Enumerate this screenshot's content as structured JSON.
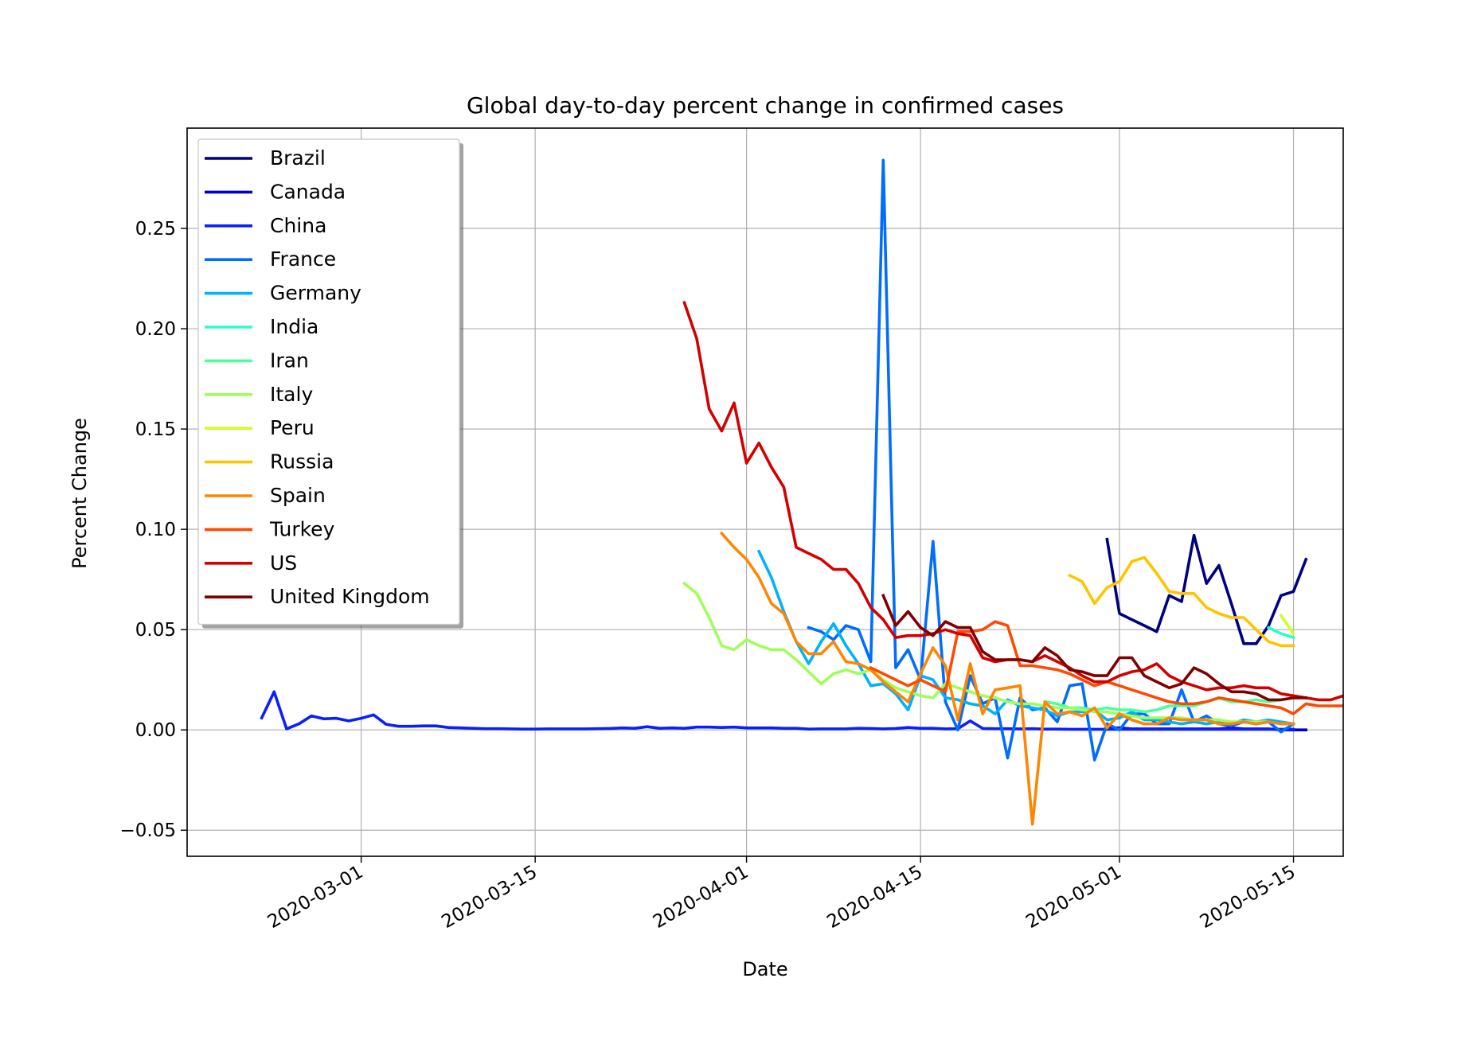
{
  "chart_data": {
    "type": "line",
    "title": "Global day-to-day percent change in confirmed cases",
    "xlabel": "Date",
    "ylabel": "Percent Change",
    "x_is_date": true,
    "xlim": [
      "2020-02-16",
      "2020-05-19"
    ],
    "ylim": [
      -0.063,
      0.3
    ],
    "x_ticks": [
      "2020-03-01",
      "2020-03-15",
      "2020-04-01",
      "2020-04-15",
      "2020-05-01",
      "2020-05-15"
    ],
    "y_ticks": [
      -0.05,
      0.0,
      0.05,
      0.1,
      0.15,
      0.2,
      0.25
    ],
    "y_tick_labels": [
      "−0.05",
      "0.00",
      "0.05",
      "0.10",
      "0.15",
      "0.20",
      "0.25"
    ],
    "grid": true,
    "legend_position": "upper-left",
    "series": [
      {
        "name": "Brazil",
        "color": "#000080",
        "start": "2020-04-30",
        "values": [
          0.095,
          0.058,
          0.055,
          0.052,
          0.049,
          0.067,
          0.064,
          0.097,
          0.073,
          0.082,
          0.063,
          0.043,
          0.043,
          0.052,
          0.067,
          0.069,
          0.085
        ]
      },
      {
        "name": "Canada",
        "color": "#0000cd",
        "start": "2020-04-30",
        "values": [
          0.001,
          0.001,
          0.0005,
          0.0005,
          0.0005,
          0.0005,
          0.0005,
          0.0005,
          0.0005,
          0.0005,
          0.001,
          0.0005,
          0.0005,
          0.0005,
          0.0,
          0.0,
          0.0
        ]
      },
      {
        "name": "China",
        "color": "#0a1fff",
        "start": "2020-02-22",
        "values": [
          0.006,
          0.019,
          0.0005,
          0.003,
          0.007,
          0.0055,
          0.0058,
          0.0045,
          0.0058,
          0.0075,
          0.0028,
          0.0018,
          0.0018,
          0.002,
          0.002,
          0.0012,
          0.001,
          0.0008,
          0.0006,
          0.0006,
          0.0005,
          0.0004,
          0.0004,
          0.0005,
          0.0005,
          0.0005,
          0.0005,
          0.0006,
          0.0007,
          0.001,
          0.0008,
          0.0016,
          0.0008,
          0.001,
          0.0008,
          0.0014,
          0.0014,
          0.0012,
          0.0014,
          0.001,
          0.001,
          0.001,
          0.0008,
          0.0008,
          0.0004,
          0.0005,
          0.0005,
          0.0005,
          0.0008,
          0.0007,
          0.0005,
          0.0007,
          0.0012,
          0.0008,
          0.0008,
          0.0005,
          0.0006,
          0.0045,
          0.0007,
          0.0006,
          0.0006,
          0.0005,
          0.0006,
          0.0004,
          0.0004,
          0.0003,
          0.0003,
          0.0003,
          0.0003,
          0.0003,
          0.0003,
          0.0003,
          0.0003,
          0.0003,
          0.0003,
          0.0003,
          0.0003,
          0.0003,
          0.0003,
          0.0003,
          0.0003,
          0.0003,
          0.0003,
          0.0003
        ]
      },
      {
        "name": "France",
        "color": "#006dff",
        "start": "2020-04-06",
        "values": [
          0.051,
          0.049,
          0.045,
          0.052,
          0.05,
          0.034,
          0.284,
          0.031,
          0.04,
          0.025,
          0.094,
          0.014,
          0.0,
          0.027,
          0.013,
          0.016,
          -0.014,
          0.016,
          0.01,
          0.011,
          0.004,
          0.022,
          0.023,
          -0.015,
          0.003,
          0.0,
          0.008,
          0.008,
          0.003,
          0.003,
          0.02,
          0.004,
          0.007,
          0.003,
          0.002,
          0.004,
          0.003,
          0.004,
          -0.001,
          0.003
        ]
      },
      {
        "name": "Germany",
        "color": "#00b1ff",
        "start": "2020-04-02",
        "values": [
          0.089,
          0.076,
          0.059,
          0.044,
          0.033,
          0.044,
          0.053,
          0.042,
          0.033,
          0.022,
          0.023,
          0.018,
          0.01,
          0.027,
          0.025,
          0.016,
          0.015,
          0.013,
          0.012,
          0.008,
          0.015,
          0.012,
          0.011,
          0.01,
          0.007,
          0.009,
          0.009,
          0.01,
          0.005,
          0.006,
          0.009,
          0.005,
          0.005,
          0.004,
          0.003,
          0.004,
          0.003,
          0.004,
          0.003,
          0.005,
          0.004,
          0.005,
          0.004,
          0.003
        ]
      },
      {
        "name": "India",
        "color": "#29ffce",
        "start": "2020-05-13",
        "values": [
          0.051,
          0.048,
          0.046
        ]
      },
      {
        "name": "Iran",
        "color": "#4bff9e",
        "start": "2020-04-25",
        "values": [
          0.014,
          0.013,
          0.011,
          0.011,
          0.01,
          0.011,
          0.01,
          0.01,
          0.009,
          0.01,
          0.012,
          0.012,
          0.012,
          0.014,
          0.016,
          0.014,
          0.014,
          0.015,
          0.014,
          0.015,
          0.016
        ]
      },
      {
        "name": "Italy",
        "color": "#9eff5a",
        "start": "2020-03-27",
        "values": [
          0.073,
          0.068,
          0.056,
          0.042,
          0.04,
          0.045,
          0.042,
          0.04,
          0.04,
          0.035,
          0.029,
          0.023,
          0.028,
          0.03,
          0.028,
          0.03,
          0.025,
          0.021,
          0.019,
          0.017,
          0.016,
          0.023,
          0.021,
          0.019,
          0.017,
          0.016,
          0.014,
          0.013,
          0.013,
          0.012,
          0.011,
          0.011,
          0.01,
          0.009,
          0.009,
          0.008,
          0.007,
          0.006,
          0.006,
          0.006,
          0.006,
          0.005,
          0.005,
          0.005,
          0.004,
          0.004,
          0.004,
          0.004,
          0.003,
          0.003
        ]
      },
      {
        "name": "Peru",
        "color": "#ceff29",
        "start": "2020-05-14",
        "values": [
          0.057,
          0.048
        ]
      },
      {
        "name": "Russia",
        "color": "#ffc400",
        "start": "2020-04-27",
        "values": [
          0.077,
          0.074,
          0.063,
          0.071,
          0.074,
          0.084,
          0.086,
          0.078,
          0.069,
          0.068,
          0.068,
          0.061,
          0.058,
          0.056,
          0.056,
          0.05,
          0.044,
          0.042,
          0.042
        ]
      },
      {
        "name": "Spain",
        "color": "#ff8600",
        "start": "2020-03-30",
        "values": [
          0.098,
          0.091,
          0.085,
          0.076,
          0.063,
          0.058,
          0.044,
          0.038,
          0.038,
          0.044,
          0.034,
          0.033,
          0.03,
          0.024,
          0.019,
          0.014,
          0.028,
          0.041,
          0.032,
          0.005,
          0.033,
          0.008,
          0.02,
          0.021,
          0.022,
          -0.047,
          0.014,
          0.008,
          0.009,
          0.007,
          0.011,
          0.001,
          0.008,
          0.005,
          0.003,
          0.003,
          0.006,
          0.005,
          0.005,
          0.005,
          0.003,
          0.003,
          0.004,
          0.003,
          0.004,
          0.003,
          0.003
        ]
      },
      {
        "name": "Turkey",
        "color": "#ff4a00",
        "start": "2020-04-11",
        "values": [
          0.031,
          0.028,
          0.025,
          0.022,
          0.025,
          0.022,
          0.019,
          0.049,
          0.049,
          0.05,
          0.054,
          0.052,
          0.032,
          0.032,
          0.031,
          0.03,
          0.028,
          0.025,
          0.022,
          0.024,
          0.022,
          0.02,
          0.018,
          0.016,
          0.014,
          0.013,
          0.013,
          0.014,
          0.016,
          0.015,
          0.014,
          0.013,
          0.012,
          0.011,
          0.008,
          0.013,
          0.012,
          0.012,
          0.012,
          0.012
        ]
      },
      {
        "name": "US",
        "color": "#d30000",
        "start": "2020-03-27",
        "values": [
          0.213,
          0.195,
          0.16,
          0.149,
          0.163,
          0.133,
          0.143,
          0.131,
          0.121,
          0.091,
          0.088,
          0.085,
          0.08,
          0.08,
          0.073,
          0.061,
          0.055,
          0.046,
          0.047,
          0.047,
          0.048,
          0.05,
          0.048,
          0.047,
          0.036,
          0.034,
          0.035,
          0.035,
          0.034,
          0.037,
          0.034,
          0.031,
          0.027,
          0.024,
          0.024,
          0.027,
          0.029,
          0.03,
          0.033,
          0.027,
          0.024,
          0.022,
          0.02,
          0.021,
          0.021,
          0.022,
          0.021,
          0.021,
          0.018,
          0.017,
          0.016,
          0.015,
          0.015,
          0.017,
          0.016
        ]
      },
      {
        "name": "United Kingdom",
        "color": "#800000",
        "start": "2020-04-12",
        "values": [
          0.067,
          0.052,
          0.059,
          0.051,
          0.047,
          0.054,
          0.051,
          0.051,
          0.039,
          0.035,
          0.035,
          0.035,
          0.034,
          0.041,
          0.037,
          0.03,
          0.029,
          0.027,
          0.027,
          0.036,
          0.036,
          0.027,
          0.024,
          0.021,
          0.023,
          0.031,
          0.028,
          0.023,
          0.019,
          0.019,
          0.018,
          0.015,
          0.015,
          0.016,
          0.016
        ]
      }
    ]
  }
}
